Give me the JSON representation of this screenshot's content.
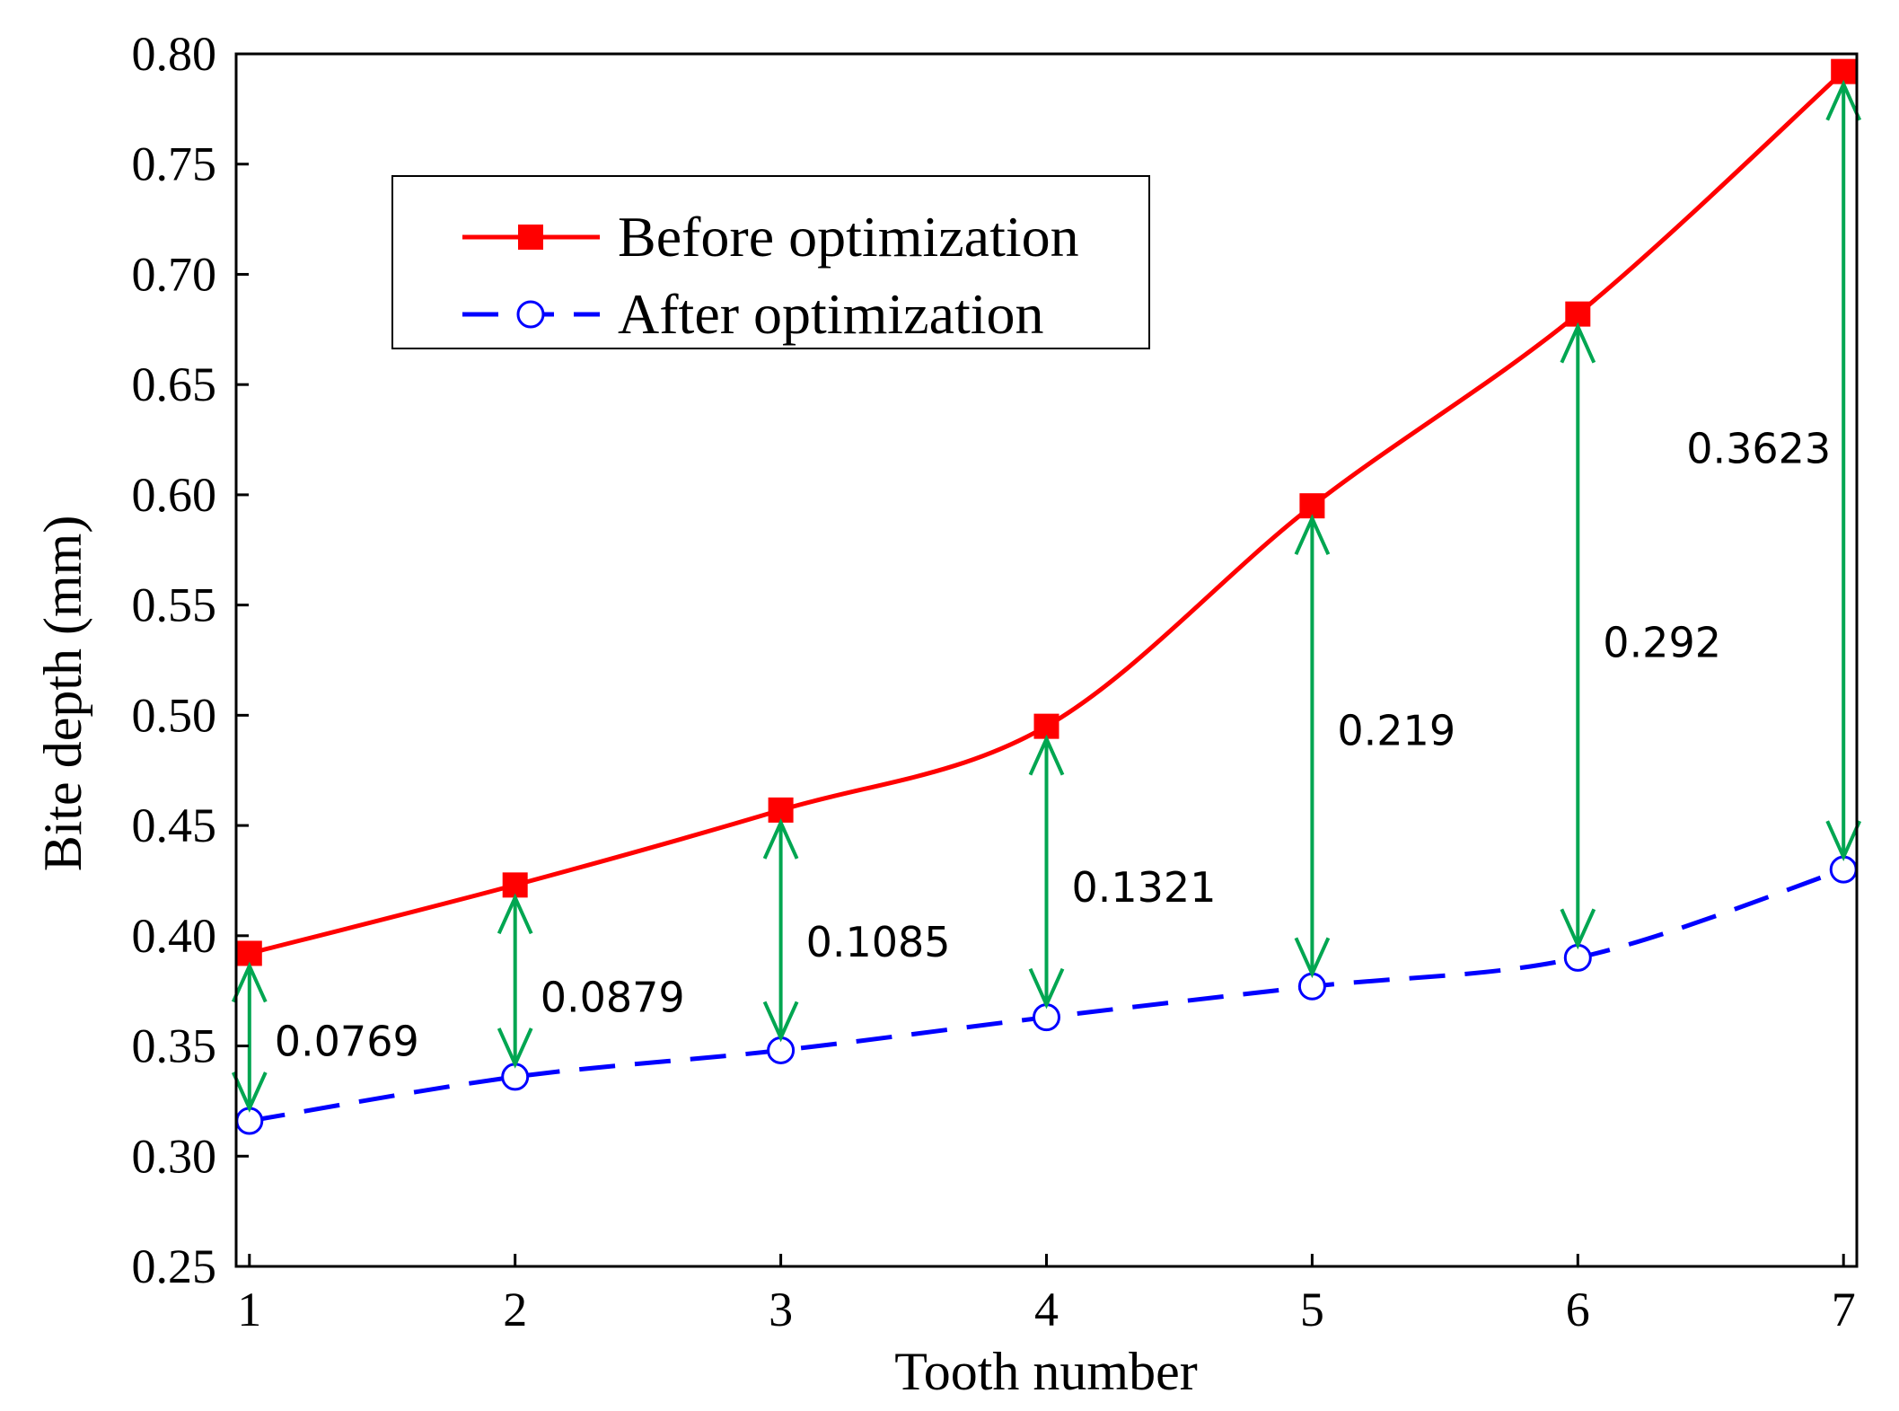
{
  "chart_data": {
    "type": "line",
    "title": "",
    "xlabel": "Tooth number",
    "ylabel": "Bite depth (mm)",
    "x": [
      1,
      2,
      3,
      4,
      5,
      6,
      7
    ],
    "x_ticks": [
      "1",
      "2",
      "3",
      "4",
      "5",
      "6",
      "7"
    ],
    "y_ticks": [
      "0.25",
      "0.30",
      "0.35",
      "0.40",
      "0.45",
      "0.50",
      "0.55",
      "0.60",
      "0.65",
      "0.70",
      "0.75",
      "0.80"
    ],
    "xlim": [
      0.95,
      7.05
    ],
    "ylim": [
      0.25,
      0.8
    ],
    "grid": false,
    "legend_position": "top-left",
    "series": [
      {
        "name": "Before optimization",
        "values": [
          0.392,
          0.423,
          0.457,
          0.495,
          0.595,
          0.682,
          0.792
        ],
        "color": "#ff0000",
        "line_style": "solid",
        "marker": "filled-square"
      },
      {
        "name": "After optimization",
        "values": [
          0.316,
          0.336,
          0.348,
          0.363,
          0.377,
          0.39,
          0.43
        ],
        "color": "#0000ff",
        "line_style": "dashed",
        "marker": "open-circle"
      }
    ],
    "annotations": [
      {
        "x": 1,
        "label": "0.0769",
        "from": 0.316,
        "to": 0.392,
        "label_y": 0.352
      },
      {
        "x": 2,
        "label": "0.0879",
        "from": 0.336,
        "to": 0.423,
        "label_y": 0.372
      },
      {
        "x": 3,
        "label": "0.1085",
        "from": 0.348,
        "to": 0.457,
        "label_y": 0.397
      },
      {
        "x": 4,
        "label": "0.1321",
        "from": 0.363,
        "to": 0.495,
        "label_y": 0.422
      },
      {
        "x": 5,
        "label": "0.219",
        "from": 0.377,
        "to": 0.595,
        "label_y": 0.493
      },
      {
        "x": 6,
        "label": "0.292",
        "from": 0.39,
        "to": 0.682,
        "label_y": 0.533
      },
      {
        "x": 7,
        "label": "0.3623",
        "from": 0.43,
        "to": 0.792,
        "label_y": 0.621
      }
    ],
    "annotation_color": "#00a651"
  }
}
